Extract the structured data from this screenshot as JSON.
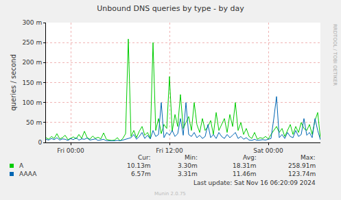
{
  "chart_data": {
    "type": "line",
    "title": "Unbound DNS queries by type - by day",
    "ylabel": "queries / second",
    "watermark": "RRDTOOL / TOBI OETIKER",
    "footer": "Last update: Sat Nov 16 06:20:09 2024",
    "credit": "Munin 2.0.75",
    "stats_header": [
      "Cur:",
      "Min:",
      "Avg:",
      "Max:"
    ],
    "grid": true,
    "xlim": [
      -3,
      30.33
    ],
    "xticks": [
      {
        "value": 0,
        "label": "Fri 00:00"
      },
      {
        "value": 12,
        "label": "Fri 12:00"
      },
      {
        "value": 24,
        "label": "Sat 00:00"
      }
    ],
    "ylim": [
      0,
      0.3
    ],
    "yticks": [
      0,
      {
        "value": 0.05,
        "label": "50 m"
      },
      {
        "value": 0.1,
        "label": "100 m"
      },
      {
        "value": 0.15,
        "label": "150 m"
      },
      {
        "value": 0.2,
        "label": "200 m"
      },
      {
        "value": 0.25,
        "label": "250 m"
      },
      {
        "value": 0.3,
        "label": "300 m"
      }
    ],
    "x": [
      -3,
      -2.67,
      -2.33,
      -2,
      -1.67,
      -1.33,
      -1,
      -0.67,
      -0.33,
      0,
      0.33,
      0.67,
      1,
      1.33,
      1.67,
      2,
      2.33,
      2.67,
      3,
      3.33,
      3.67,
      4,
      4.33,
      4.67,
      5,
      5.33,
      5.67,
      6,
      6.33,
      6.67,
      7,
      7.33,
      7.67,
      8,
      8.33,
      8.67,
      9,
      9.33,
      9.67,
      10,
      10.33,
      10.67,
      11,
      11.33,
      11.67,
      12,
      12.33,
      12.67,
      13,
      13.33,
      13.67,
      14,
      14.33,
      14.67,
      15,
      15.33,
      15.67,
      16,
      16.33,
      16.67,
      17,
      17.33,
      17.67,
      18,
      18.33,
      18.67,
      19,
      19.33,
      19.67,
      20,
      20.33,
      20.67,
      21,
      21.33,
      21.67,
      22,
      22.33,
      22.67,
      23,
      23.33,
      23.67,
      24,
      24.33,
      24.67,
      25,
      25.33,
      25.67,
      26,
      26.33,
      26.67,
      27,
      27.33,
      27.67,
      28,
      28.33,
      28.67,
      29,
      29.33,
      29.67,
      30,
      30.33
    ],
    "series": [
      {
        "name": "A",
        "color": "#00cc00",
        "stats": [
          "10.13m",
          "3.30m",
          "18.31m",
          "258.91m"
        ],
        "values": [
          0.012,
          0.008,
          0.015,
          0.01,
          0.022,
          0.009,
          0.012,
          0.018,
          0.007,
          0.011,
          0.014,
          0.009,
          0.02,
          0.01,
          0.028,
          0.012,
          0.008,
          0.016,
          0.01,
          0.013,
          0.009,
          0.024,
          0.008,
          0.006,
          0.005,
          0.006,
          0.012,
          0.004,
          0.01,
          0.022,
          0.259,
          0.015,
          0.03,
          0.012,
          0.028,
          0.04,
          0.018,
          0.025,
          0.01,
          0.25,
          0.03,
          0.06,
          0.022,
          0.045,
          0.035,
          0.165,
          0.028,
          0.07,
          0.04,
          0.12,
          0.035,
          0.05,
          0.065,
          0.03,
          0.1,
          0.045,
          0.025,
          0.06,
          0.03,
          0.04,
          0.055,
          0.02,
          0.075,
          0.03,
          0.045,
          0.06,
          0.025,
          0.07,
          0.04,
          0.1,
          0.03,
          0.05,
          0.02,
          0.035,
          0.015,
          0.01,
          0.025,
          0.008,
          0.012,
          0.01,
          0.015,
          0.009,
          0.02,
          0.03,
          0.04,
          0.025,
          0.035,
          0.015,
          0.03,
          0.045,
          0.02,
          0.04,
          0.025,
          0.05,
          0.035,
          0.03,
          0.045,
          0.02,
          0.055,
          0.075,
          0.01013
        ]
      },
      {
        "name": "AAAA",
        "color": "#0066b3",
        "stats": [
          "6.57m",
          "3.31m",
          "11.46m",
          "123.74m"
        ],
        "values": [
          0.008,
          0.006,
          0.01,
          0.007,
          0.012,
          0.006,
          0.009,
          0.008,
          0.005,
          0.01,
          0.007,
          0.012,
          0.006,
          0.009,
          0.008,
          0.011,
          0.006,
          0.007,
          0.009,
          0.005,
          0.006,
          0.008,
          0.004,
          0.004,
          0.0035,
          0.004,
          0.005,
          0.004,
          0.006,
          0.008,
          0.01,
          0.012,
          0.02,
          0.008,
          0.015,
          0.025,
          0.01,
          0.018,
          0.009,
          0.03,
          0.015,
          0.02,
          0.1,
          0.012,
          0.025,
          0.018,
          0.03,
          0.015,
          0.022,
          0.06,
          0.018,
          0.1,
          0.02,
          0.015,
          0.025,
          0.012,
          0.018,
          0.01,
          0.015,
          0.045,
          0.012,
          0.02,
          0.01,
          0.025,
          0.015,
          0.01,
          0.02,
          0.012,
          0.018,
          0.025,
          0.01,
          0.015,
          0.008,
          0.012,
          0.006,
          0.005,
          0.008,
          0.005,
          0.006,
          0.007,
          0.006,
          0.008,
          0.01,
          0.06,
          0.115,
          0.012,
          0.02,
          0.01,
          0.025,
          0.015,
          0.012,
          0.03,
          0.015,
          0.02,
          0.06,
          0.018,
          0.025,
          0.012,
          0.06,
          0.03,
          0.00657
        ]
      }
    ]
  }
}
